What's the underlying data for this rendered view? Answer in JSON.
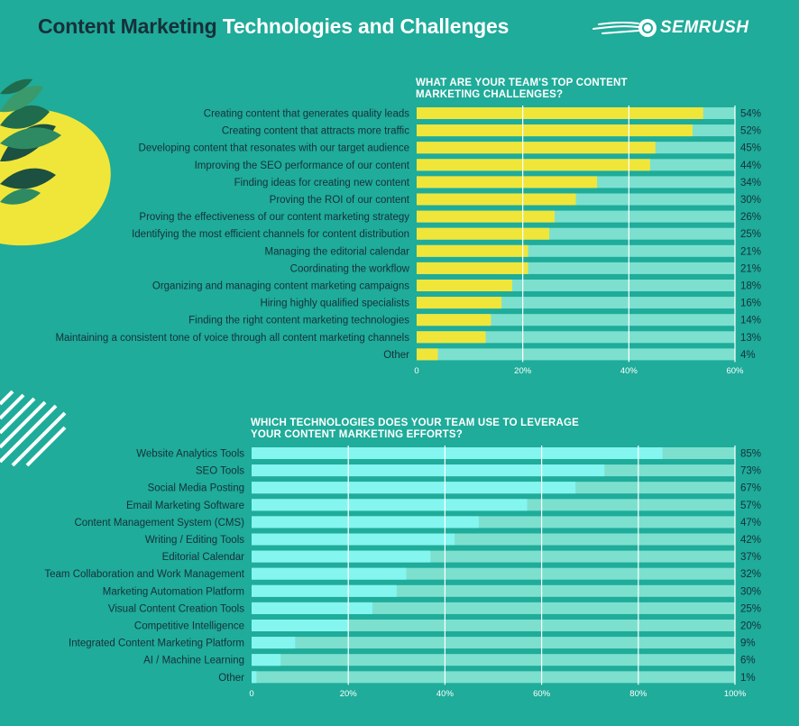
{
  "header": {
    "title_part1": "Content Marketing",
    "title_part2": "Technologies and Challenges",
    "logo_text": "SEMRUSH"
  },
  "colors": {
    "background": "#1fac9a",
    "title_dark": "#16303a",
    "bar_track": "#7de0cf",
    "challenges_bar": "#f0e63a",
    "technologies_bar": "#85f5f0",
    "leaf_dark": "#1c5040",
    "blob_yellow": "#f0e63a"
  },
  "chart_data": [
    {
      "type": "bar",
      "orientation": "horizontal",
      "title_lines": [
        "WHAT ARE YOUR TEAM'S TOP CONTENT",
        "MARKETING CHALLENGES?"
      ],
      "categories": [
        "Creating content that generates quality leads",
        "Creating content that attracts more traffic",
        "Developing content that resonates with our target audience",
        "Improving the SEO performance of our content",
        "Finding ideas for creating new content",
        "Proving the ROI of our content",
        "Proving the effectiveness of our content marketing strategy",
        "Identifying the most efficient channels for content distribution",
        "Managing the editorial calendar",
        "Coordinating the workflow",
        "Organizing and managing content marketing campaigns",
        "Hiring highly qualified specialists",
        "Finding the right content marketing technologies",
        "Maintaining a consistent tone of voice through all content marketing channels",
        "Other"
      ],
      "values": [
        54,
        52,
        45,
        44,
        34,
        30,
        26,
        25,
        21,
        21,
        18,
        16,
        14,
        13,
        4
      ],
      "value_labels": [
        "54%",
        "52%",
        "45%",
        "44%",
        "34%",
        "30%",
        "26%",
        "25%",
        "21%",
        "21%",
        "18%",
        "16%",
        "14%",
        "13%",
        "4%"
      ],
      "xlim": [
        0,
        60
      ],
      "xticks": [
        0,
        20,
        40,
        60
      ],
      "xtick_labels": [
        "0",
        "20%",
        "40%",
        "60%"
      ],
      "gridlines": true
    },
    {
      "type": "bar",
      "orientation": "horizontal",
      "title_lines": [
        "WHICH TECHNOLOGIES DOES YOUR TEAM USE TO LEVERAGE",
        "YOUR CONTENT MARKETING EFFORTS?"
      ],
      "categories": [
        "Website Analytics Tools",
        "SEO Tools",
        "Social Media Posting",
        "Email Marketing Software",
        "Content Management System (CMS)",
        "Writing / Editing Tools",
        "Editorial Calendar",
        "Team Collaboration and Work Management",
        "Marketing Automation Platform",
        "Visual Content Creation Tools",
        "Competitive Intelligence",
        "Integrated Content Marketing Platform",
        "AI / Machine Learning",
        "Other"
      ],
      "values": [
        85,
        73,
        67,
        57,
        47,
        42,
        37,
        32,
        30,
        25,
        20,
        9,
        6,
        1
      ],
      "value_labels": [
        "85%",
        "73%",
        "67%",
        "57%",
        "47%",
        "42%",
        "37%",
        "32%",
        "30%",
        "25%",
        "20%",
        "9%",
        "6%",
        "1%"
      ],
      "xlim": [
        0,
        100
      ],
      "xticks": [
        0,
        20,
        40,
        60,
        80,
        100
      ],
      "xtick_labels": [
        "0",
        "20%",
        "40%",
        "60%",
        "80%",
        "100%"
      ],
      "gridlines": true
    }
  ]
}
